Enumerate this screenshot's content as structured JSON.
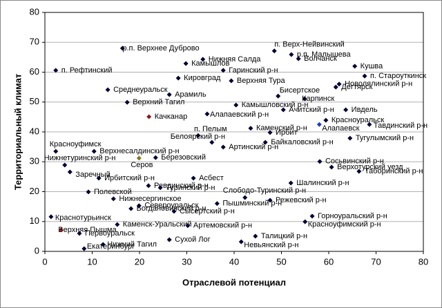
{
  "chart_data": {
    "type": "scatter",
    "x_label": "Отраслевой потенциал",
    "y_label": "Территориальный климат",
    "xlim": [
      0,
      80
    ],
    "ylim": [
      0,
      80
    ],
    "xticks": [
      0,
      10,
      20,
      30,
      40,
      50,
      60,
      70,
      80
    ],
    "yticks": [
      0,
      10,
      20,
      30,
      40,
      50,
      60,
      70,
      80
    ],
    "grid": true,
    "color": "#000033",
    "points": [
      {
        "label": "р.п. Верхнее Дуброво",
        "x": 16.4,
        "y": 68.0
      },
      {
        "label": "п. Рефтинский",
        "x": 2.3,
        "y": 60.6
      },
      {
        "label": "Нижняя Салда",
        "x": 33.4,
        "y": 64.3
      },
      {
        "label": "Камышлов",
        "x": 29.8,
        "y": 62.9
      },
      {
        "label": "Гаринский р-н",
        "x": 37.7,
        "y": 60.6
      },
      {
        "label": "Кировград",
        "x": 28.2,
        "y": 58.0
      },
      {
        "label": "Верхняя Тура",
        "x": 39.4,
        "y": 57.1
      },
      {
        "label": "п. Верх-Нейвинский",
        "x": 48.5,
        "y": 67.1
      },
      {
        "label": "р.п. Малышева",
        "x": 52.1,
        "y": 65.9
      },
      {
        "label": "Волчанск",
        "x": 53.6,
        "y": 64.5
      },
      {
        "label": "Кушва",
        "x": 65.5,
        "y": 62.0
      },
      {
        "label": "п. Староуткинск",
        "x": 67.6,
        "y": 58.7
      },
      {
        "label": "Новолялинский р-н",
        "x": 62.2,
        "y": 56.0
      },
      {
        "label": "Дегтярск",
        "x": 61.5,
        "y": 55.0
      },
      {
        "label": "Среднеуральск",
        "x": 13.3,
        "y": 54.1
      },
      {
        "label": "Арамиль",
        "x": 26.3,
        "y": 52.5
      },
      {
        "label": "Верхний Тагил",
        "x": 17.4,
        "y": 49.9
      },
      {
        "label": "Бисертское",
        "x": 49.3,
        "y": 52.0
      },
      {
        "label": "Карпинск",
        "x": 54.9,
        "y": 51.1
      },
      {
        "label": "Камышловский р-н",
        "x": 40.4,
        "y": 49.0
      },
      {
        "label": "Ачитский р-н",
        "x": 50.4,
        "y": 47.4
      },
      {
        "label": "Ивдель",
        "x": 63.6,
        "y": 47.4
      },
      {
        "label": "Алапаевский р-н",
        "x": 34.3,
        "y": 46.0
      },
      {
        "label": "Качканар",
        "x": 22.0,
        "y": 45.1,
        "color": "#8b1a1a"
      },
      {
        "label": "Красноуральск",
        "x": 59.4,
        "y": 43.9
      },
      {
        "label": "Алапаевск",
        "x": 58.0,
        "y": 42.5,
        "color": "#1f3fbf"
      },
      {
        "label": "Тавдинский р-н",
        "x": 68.6,
        "y": 42.5
      },
      {
        "label": "Каменский р-н",
        "x": 43.5,
        "y": 41.2
      },
      {
        "label": "Ирбит",
        "x": 47.6,
        "y": 39.8
      },
      {
        "label": "п. Пелым",
        "x": 32.4,
        "y": 38.8
      },
      {
        "label": "Белоярский р-н",
        "x": 35.3,
        "y": 36.5
      },
      {
        "label": "Байкаловский р-н",
        "x": 46.6,
        "y": 36.5
      },
      {
        "label": "Артинский р-н",
        "x": 37.7,
        "y": 34.9
      },
      {
        "label": "Тугулымский р-н",
        "x": 64.5,
        "y": 37.9
      },
      {
        "label": "Красноуфимск",
        "x": 2.3,
        "y": 33.5
      },
      {
        "label": "Верхнесалдинский р-н",
        "x": 10.4,
        "y": 33.5
      },
      {
        "label": "Серов",
        "x": 19.9,
        "y": 31.2,
        "color": "#7a7a1a"
      },
      {
        "label": "Березовский",
        "x": 23.4,
        "y": 31.4
      },
      {
        "label": "Нижнетуринский р-н",
        "x": 4.2,
        "y": 28.9
      },
      {
        "label": "Сосьвинский р-н",
        "x": 58.1,
        "y": 30.1
      },
      {
        "label": "Верхотурский уезд",
        "x": 60.6,
        "y": 28.2
      },
      {
        "label": "Таборинский р-н",
        "x": 66.4,
        "y": 26.8
      },
      {
        "label": "Заречный",
        "x": 5.3,
        "y": 26.6
      },
      {
        "label": "Ирбитский р-н",
        "x": 11.4,
        "y": 24.5
      },
      {
        "label": "Асбест",
        "x": 31.4,
        "y": 24.5
      },
      {
        "label": "Ревдинский р-н",
        "x": 21.9,
        "y": 22.0
      },
      {
        "label": "Полевской",
        "x": 9.2,
        "y": 19.9
      },
      {
        "label": "Туринский р-н",
        "x": 24.4,
        "y": 21.3
      },
      {
        "label": "Слободо-Туринский р-н",
        "x": 42.3,
        "y": 18.0
      },
      {
        "label": "Шалинский р-н",
        "x": 52.0,
        "y": 22.9
      },
      {
        "label": "Нижнесергинское",
        "x": 14.5,
        "y": 17.6
      },
      {
        "label": "Пышминский р-н",
        "x": 36.4,
        "y": 16.0
      },
      {
        "label": "Режевский р-н",
        "x": 47.6,
        "y": 17.1
      },
      {
        "label": "Североуральск",
        "x": 19.9,
        "y": 15.3
      },
      {
        "label": "Сысертский р-н",
        "x": 27.3,
        "y": 13.4
      },
      {
        "label": "Горноуральский р-н",
        "x": 56.5,
        "y": 11.8
      },
      {
        "label": "Краснотурьинск",
        "x": 1.3,
        "y": 11.6
      },
      {
        "label": "Богдановичский р-н",
        "x": 18.2,
        "y": 14.3
      },
      {
        "label": "Каменск-Уральский",
        "x": 15.3,
        "y": 9.0
      },
      {
        "label": "Артемовский р-н",
        "x": 30.2,
        "y": 8.6
      },
      {
        "label": "Красноуфимский р-н",
        "x": 55.0,
        "y": 9.9
      },
      {
        "label": "Верхняя Пышма",
        "x": 3.4,
        "y": 7.2,
        "color": "#b22222"
      },
      {
        "label": "Первоуральск",
        "x": 7.3,
        "y": 6.0
      },
      {
        "label": "Талицкий р-н",
        "x": 44.5,
        "y": 5.1
      },
      {
        "label": "Сухой Лог",
        "x": 26.3,
        "y": 3.9
      },
      {
        "label": "Невьянский р-н",
        "x": 41.5,
        "y": 3.2
      },
      {
        "label": "Нижний Тагил",
        "x": 12.3,
        "y": 2.3
      },
      {
        "label": "Екатеринбург",
        "x": 8.3,
        "y": 0.9
      }
    ]
  }
}
